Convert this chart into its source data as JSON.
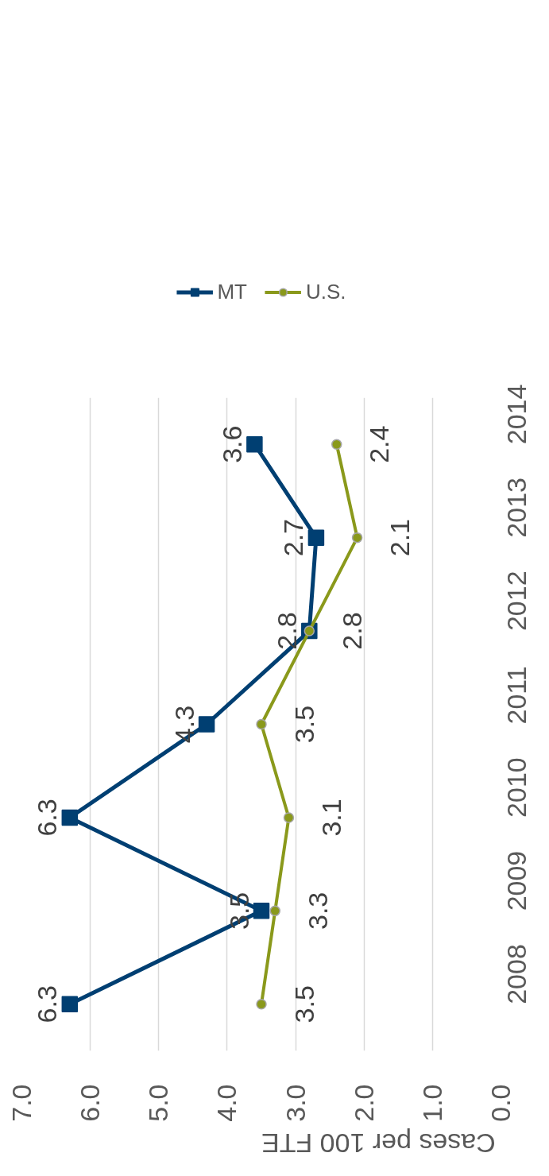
{
  "chart_data": {
    "type": "line",
    "orientation": "horizontal",
    "categories": [
      "2014",
      "2013",
      "2012",
      "2011",
      "2010",
      "2009",
      "2008"
    ],
    "series": [
      {
        "name": "MT",
        "color": "#003f72",
        "marker": "square",
        "values": [
          3.6,
          2.7,
          2.8,
          4.3,
          6.3,
          3.5,
          6.3
        ]
      },
      {
        "name": "U.S.",
        "color": "#8a991b",
        "marker": "circle",
        "values": [
          2.4,
          2.1,
          2.8,
          3.5,
          3.1,
          3.3,
          3.5
        ]
      }
    ],
    "xlabel": "Cases per 100 FTE",
    "xlim": [
      7,
      0
    ],
    "xticks": [
      {
        "value": 0,
        "label": "0.0"
      },
      {
        "value": 1,
        "label": "1.0"
      },
      {
        "value": 2,
        "label": "2.0"
      },
      {
        "value": 3,
        "label": "3.0"
      },
      {
        "value": 4,
        "label": "4.0"
      },
      {
        "value": 5,
        "label": "5.0"
      },
      {
        "value": 6,
        "label": "6.0"
      },
      {
        "value": 7,
        "label": "7.0"
      }
    ],
    "grid": "x",
    "legend": "top",
    "data_labels": true
  }
}
